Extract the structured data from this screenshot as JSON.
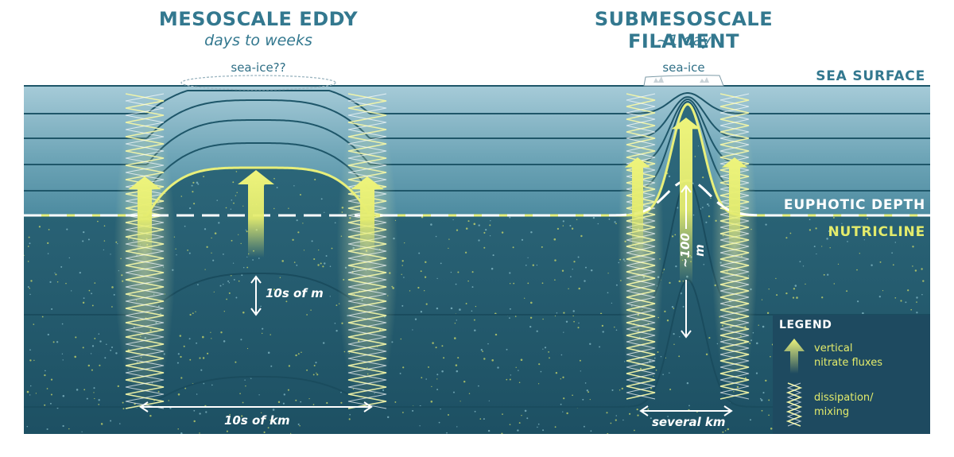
{
  "colors": {
    "surface_water": "#9cc4d2",
    "deep_water": "#25596c",
    "line": "#1e5669",
    "nutricline": "#e8ef7a",
    "euphotic": "#ffffff",
    "title": "#33788f",
    "legend_bg": "#1e4a60"
  },
  "mesoscale": {
    "title": "MESOSCALE EDDY",
    "subtitle": "days to weeks",
    "ice_label": "sea-ice??",
    "vertical_scale": "10s of m",
    "horizontal_scale": "10s of km"
  },
  "submesoscale": {
    "title": "SUBMESOSCALE FILAMENT",
    "subtitle": "~1 day",
    "ice_label": "sea-ice",
    "vertical_scale": "~100 m",
    "horizontal_scale": "several km"
  },
  "layers": {
    "sea_surface": "SEA SURFACE",
    "euphotic_depth": "EUPHOTIC DEPTH",
    "nutricline": "NUTRICLINE"
  },
  "legend": {
    "title": "LEGEND",
    "flux_label_line1": "vertical",
    "flux_label_line2": "nitrate fluxes",
    "mixing_label_line1": "dissipation/",
    "mixing_label_line2": "mixing",
    "arrow_icon": "upward-arrow-icon",
    "mixing_icon": "zigzag-icon"
  }
}
